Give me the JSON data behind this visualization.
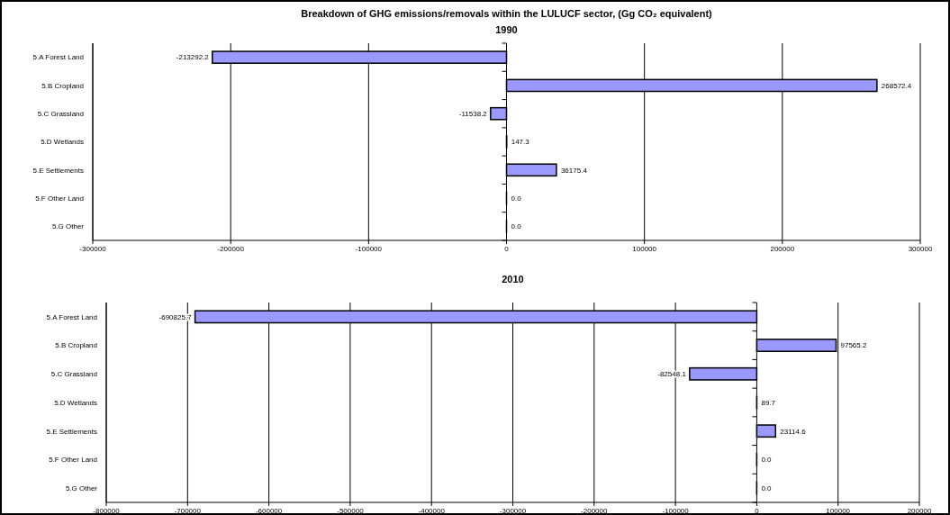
{
  "chart_data": [
    {
      "type": "bar",
      "orientation": "horizontal",
      "title": "Breakdown of GHG emissions/removals within the LULUCF sector, (Gg CO₂ equivalent)",
      "subtitle": "1990",
      "categories": [
        "5.A Forest Land",
        "5.B Cropland",
        "5.C Grassland",
        "5.D Wetlands",
        "5.E Settlements",
        "5.F Other Land",
        "5.G Other"
      ],
      "values": [
        -213292.2,
        268572.4,
        -11538.2,
        147.3,
        36175.4,
        0,
        0
      ],
      "value_labels": [
        "-213292.2",
        "268572.4",
        "-11538.2",
        "147.3",
        "36175.4",
        "0.0",
        "0.0"
      ],
      "color": "#9999ff",
      "xlim": [
        -300000,
        300000
      ],
      "xticks": [
        -300000,
        -200000,
        -100000,
        0,
        100000,
        200000,
        300000
      ],
      "grid": "x"
    },
    {
      "type": "bar",
      "orientation": "horizontal",
      "title": "2010",
      "categories": [
        "5.A Forest Land",
        "5.B Cropland",
        "5.C Grassland",
        "5.D Wetlands",
        "5.E Settlements",
        "5.F Other Land",
        "5.G Other"
      ],
      "values": [
        -690825.7,
        97565.2,
        -82548.1,
        89.7,
        23114.6,
        0,
        0
      ],
      "value_labels": [
        "-690825.7",
        "97565.2",
        "-82548.1",
        "89.7",
        "23114.6",
        "0.0",
        "0.0"
      ],
      "color": "#9999ff",
      "xlim": [
        -800000,
        200000
      ],
      "xticks": [
        -800000,
        -700000,
        -600000,
        -500000,
        -400000,
        -300000,
        -200000,
        -100000,
        0,
        100000,
        200000
      ],
      "grid": "x"
    }
  ]
}
